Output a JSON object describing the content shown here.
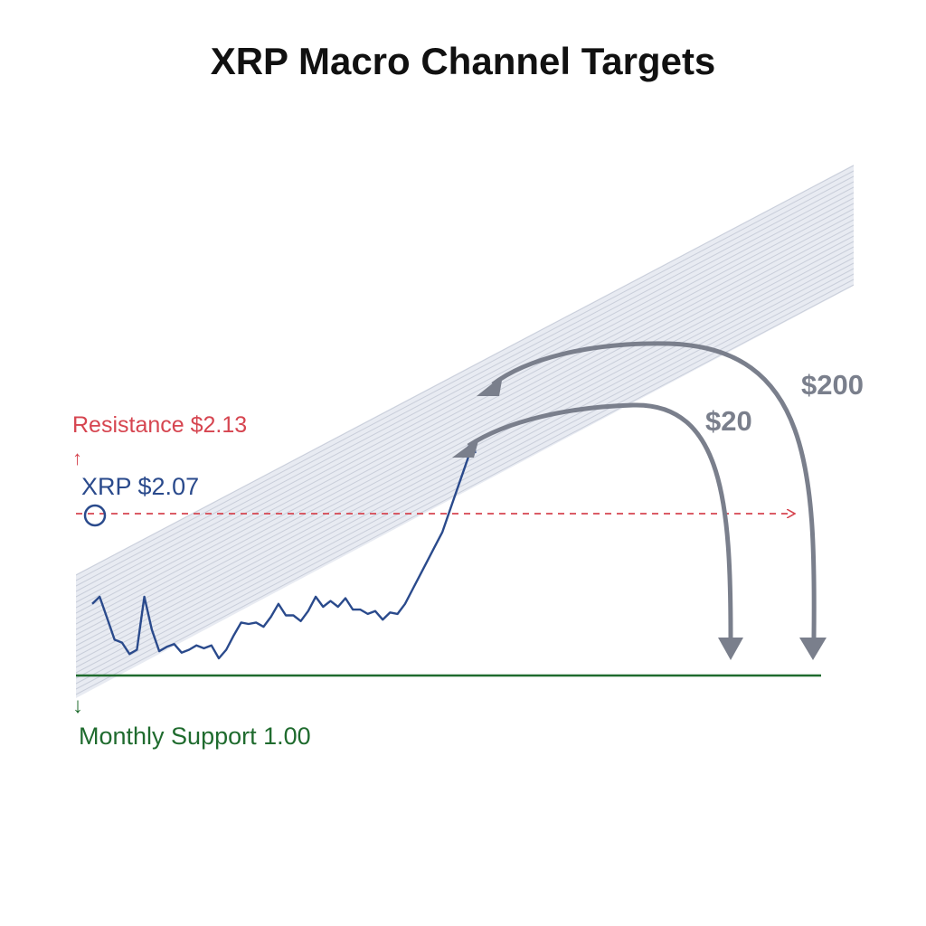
{
  "chart_data": {
    "type": "line",
    "title": "XRP Macro Channel Targets",
    "xlabel": "",
    "ylabel": "",
    "x": [
      0,
      1,
      2,
      3,
      4,
      5,
      6,
      7,
      8,
      9,
      10,
      11,
      12,
      13,
      14,
      15,
      16,
      17,
      18,
      19,
      20,
      21,
      22,
      23,
      24,
      25,
      26,
      27,
      28,
      29,
      30,
      31,
      32,
      33,
      34,
      35,
      36,
      37,
      38,
      39,
      40,
      41,
      42,
      43,
      44,
      45,
      46,
      47,
      48,
      49,
      50,
      51
    ],
    "series": [
      {
        "values": [
          1.5,
          1.55,
          1.4,
          1.25,
          1.23,
          1.15,
          1.18,
          1.55,
          1.32,
          1.17,
          1.2,
          1.22,
          1.16,
          1.18,
          1.21,
          1.19,
          1.21,
          1.12,
          1.18,
          1.28,
          1.37,
          1.36,
          1.37,
          1.34,
          1.41,
          1.5,
          1.42,
          1.42,
          1.38,
          1.45,
          1.55,
          1.48,
          1.52,
          1.48,
          1.54,
          1.46,
          1.46,
          1.43,
          1.45,
          1.39,
          1.44,
          1.43,
          1.5,
          1.6,
          1.7,
          1.8,
          1.9,
          2.0,
          2.15,
          2.3,
          2.45,
          2.6
        ]
      }
    ],
    "annotations": {
      "resistance": {
        "label": "Resistance $2.13",
        "value": 2.13,
        "color": "#d64550"
      },
      "current": {
        "label": "XRP $2.07",
        "value": 2.07,
        "color": "#2a4a8c"
      },
      "support": {
        "label": "Monthly Support 1.00",
        "value": 1.0,
        "color": "#1f6b2e"
      },
      "targets": [
        {
          "label": "$20",
          "value": 20
        },
        {
          "label": "$200",
          "value": 200
        }
      ]
    },
    "channel": {
      "style": "shaded ascending band with hatching",
      "color": "#dde1ec"
    },
    "grid": false,
    "legend": "none"
  }
}
